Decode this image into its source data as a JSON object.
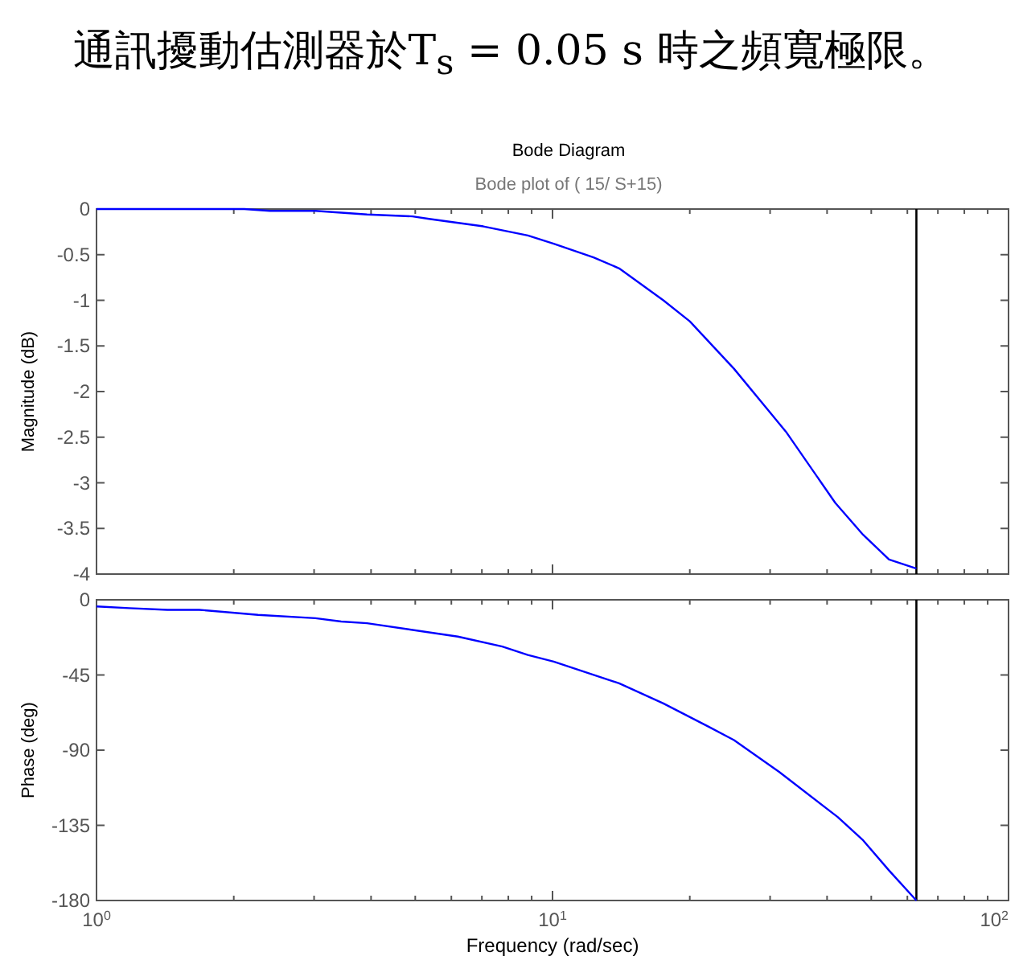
{
  "chart_data": [
    {
      "type": "line",
      "title": "Bode Diagram",
      "subtitle": "Bode plot of ( 15/ S+15)",
      "ylabel": "Magnitude (dB)",
      "annotations": [
        "通訊擾動估測器於T$_{s}$ = 0.05 s 時之頻寬極限。"
      ],
      "x": [
        1,
        2.11,
        2.4,
        3.02,
        3.92,
        4.93,
        5.4,
        7.05,
        8.83,
        10.06,
        12.3,
        14.0,
        17.5,
        20.0,
        25.0,
        32.5,
        41.7,
        48.0,
        54.7,
        62.8
      ],
      "series": [
        {
          "color": "#0000ff",
          "values": [
            0,
            0,
            -0.02,
            -0.02,
            -0.06,
            -0.08,
            -0.11,
            -0.19,
            -0.29,
            -0.38,
            -0.53,
            -0.65,
            -1.0,
            -1.23,
            -1.75,
            -2.44,
            -3.22,
            -3.57,
            -3.84,
            -3.94
          ]
        }
      ],
      "xlim": [
        1,
        100
      ],
      "xticks": [
        1,
        10,
        100
      ],
      "ylim": [
        -4,
        0
      ],
      "yticks": [
        0,
        -0.5,
        -1,
        -1.5,
        -2,
        -2.5,
        -3,
        -3.5,
        -4
      ],
      "log": "x",
      "grid": false,
      "tick_labels": "y",
      "ref_lines": [
        {
          "axis": "x",
          "value": 62.8,
          "color": "#000000"
        }
      ]
    },
    {
      "type": "line",
      "ylabel": "Phase (deg)",
      "xlabel": "Frequency (rad/sec)",
      "x": [
        1,
        1.18,
        1.43,
        1.68,
        2.26,
        3.02,
        3.44,
        3.92,
        6.2,
        7.76,
        8.83,
        10.06,
        14.0,
        17.5,
        22.0,
        25.0,
        31.4,
        42.2,
        48.0,
        54.7,
        62.8
      ],
      "series": [
        {
          "color": "#0000ff",
          "values": [
            -4,
            -5,
            -6,
            -6,
            -9,
            -11,
            -13,
            -14,
            -22,
            -28,
            -33,
            -37,
            -50,
            -62,
            -76,
            -84,
            -103,
            -130,
            -144,
            -162,
            -180
          ]
        }
      ],
      "xlim": [
        1,
        100
      ],
      "xticks": [
        {
          "value": 1,
          "label": "10$^{0}$"
        },
        {
          "value": 10,
          "label": "10$^{1}$"
        },
        {
          "value": 100,
          "label": "10$^{2}$"
        }
      ],
      "ylim": [
        -180,
        0
      ],
      "yticks": [
        0,
        -45,
        -90,
        -135,
        -180
      ],
      "log": "x",
      "grid": false,
      "ref_lines": [
        {
          "axis": "x",
          "value": 62.8,
          "color": "#000000"
        }
      ]
    }
  ]
}
